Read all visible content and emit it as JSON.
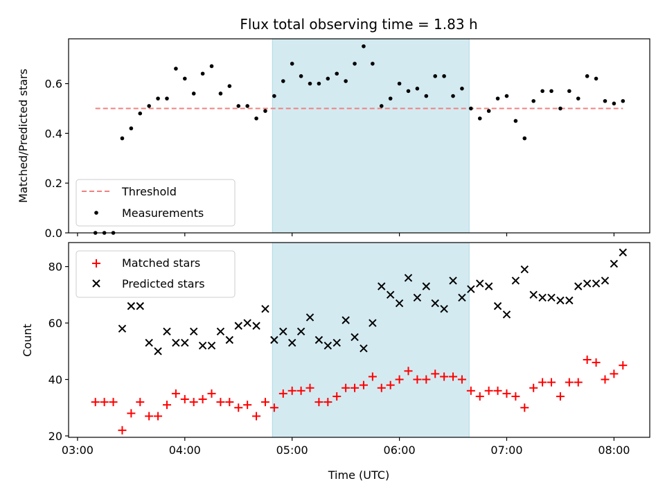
{
  "chart_data": [
    {
      "type": "scatter",
      "title": "Flux total observing time = 1.83 h",
      "xlabel": "",
      "ylabel": "Matched/Predicted stars",
      "xlim": [
        "02:55",
        "08:20"
      ],
      "ylim": [
        0,
        0.78
      ],
      "xticks": [
        "03:00",
        "04:00",
        "05:00",
        "06:00",
        "07:00",
        "08:00"
      ],
      "yticks": [
        "0.0",
        "0.2",
        "0.4",
        "0.6"
      ],
      "highlight_span": {
        "start": "04:49",
        "end": "06:39",
        "color": "#d4eaf1"
      },
      "threshold": {
        "name": "Threshold",
        "value": 0.5,
        "x_start": "03:10",
        "x_end": "08:05",
        "color": "#f08080"
      },
      "legend_location": "lower-left",
      "series": [
        {
          "name": "Measurements",
          "color": "#000000",
          "x": [
            "03:10",
            "03:15",
            "03:20",
            "03:25",
            "03:30",
            "03:35",
            "03:40",
            "03:45",
            "03:50",
            "03:55",
            "04:00",
            "04:05",
            "04:10",
            "04:15",
            "04:20",
            "04:25",
            "04:30",
            "04:35",
            "04:40",
            "04:45",
            "04:50",
            "04:55",
            "05:00",
            "05:05",
            "05:10",
            "05:15",
            "05:20",
            "05:25",
            "05:30",
            "05:35",
            "05:40",
            "05:45",
            "05:50",
            "05:55",
            "06:00",
            "06:05",
            "06:10",
            "06:15",
            "06:20",
            "06:25",
            "06:30",
            "06:35",
            "06:40",
            "06:45",
            "06:50",
            "06:55",
            "07:00",
            "07:05",
            "07:10",
            "07:15",
            "07:20",
            "07:25",
            "07:30",
            "07:35",
            "07:40",
            "07:45",
            "07:50",
            "07:55",
            "08:00",
            "08:05"
          ],
          "y": [
            0.0,
            0.0,
            0.0,
            0.38,
            0.42,
            0.48,
            0.51,
            0.54,
            0.54,
            0.66,
            0.62,
            0.56,
            0.64,
            0.67,
            0.56,
            0.59,
            0.51,
            0.51,
            0.46,
            0.49,
            0.55,
            0.61,
            0.68,
            0.63,
            0.6,
            0.6,
            0.62,
            0.64,
            0.61,
            0.68,
            0.75,
            0.68,
            0.51,
            0.54,
            0.6,
            0.57,
            0.58,
            0.55,
            0.63,
            0.63,
            0.55,
            0.58,
            0.5,
            0.46,
            0.49,
            0.54,
            0.55,
            0.45,
            0.38,
            0.53,
            0.57,
            0.57,
            0.5,
            0.57,
            0.54,
            0.63,
            0.62,
            0.53,
            0.52,
            0.53
          ]
        }
      ]
    },
    {
      "type": "scatter",
      "title": "",
      "xlabel": "Time (UTC)",
      "ylabel": "Count",
      "xlim": [
        "02:55",
        "08:20"
      ],
      "ylim": [
        19.5,
        88.5
      ],
      "xticks": [
        "03:00",
        "04:00",
        "05:00",
        "06:00",
        "07:00",
        "08:00"
      ],
      "yticks": [
        "20",
        "40",
        "60",
        "80"
      ],
      "highlight_span": {
        "start": "04:49",
        "end": "06:39",
        "color": "#d4eaf1"
      },
      "legend_location": "upper-left",
      "series": [
        {
          "name": "Matched stars",
          "marker": "plus",
          "color": "#ff0000",
          "x": [
            "03:10",
            "03:15",
            "03:20",
            "03:25",
            "03:30",
            "03:35",
            "03:40",
            "03:45",
            "03:50",
            "03:55",
            "04:00",
            "04:05",
            "04:10",
            "04:15",
            "04:20",
            "04:25",
            "04:30",
            "04:35",
            "04:40",
            "04:45",
            "04:50",
            "04:55",
            "05:00",
            "05:05",
            "05:10",
            "05:15",
            "05:20",
            "05:25",
            "05:30",
            "05:35",
            "05:40",
            "05:45",
            "05:50",
            "05:55",
            "06:00",
            "06:05",
            "06:10",
            "06:15",
            "06:20",
            "06:25",
            "06:30",
            "06:35",
            "06:40",
            "06:45",
            "06:50",
            "06:55",
            "07:00",
            "07:05",
            "07:10",
            "07:15",
            "07:20",
            "07:25",
            "07:30",
            "07:35",
            "07:40",
            "07:45",
            "07:50",
            "07:55",
            "08:00",
            "08:05"
          ],
          "y": [
            32,
            32,
            32,
            22,
            28,
            32,
            27,
            27,
            31,
            35,
            33,
            32,
            33,
            35,
            32,
            32,
            30,
            31,
            27,
            32,
            30,
            35,
            36,
            36,
            37,
            32,
            32,
            34,
            37,
            37,
            38,
            41,
            37,
            38,
            40,
            43,
            40,
            40,
            42,
            41,
            41,
            40,
            36,
            34,
            36,
            36,
            35,
            34,
            30,
            37,
            39,
            39,
            34,
            39,
            39,
            47,
            46,
            40,
            42,
            45
          ]
        },
        {
          "name": "Predicted stars",
          "marker": "x",
          "color": "#000000",
          "x": [
            "03:25",
            "03:30",
            "03:35",
            "03:40",
            "03:45",
            "03:50",
            "03:55",
            "04:00",
            "04:05",
            "04:10",
            "04:15",
            "04:20",
            "04:25",
            "04:30",
            "04:35",
            "04:40",
            "04:45",
            "04:50",
            "04:55",
            "05:00",
            "05:05",
            "05:10",
            "05:15",
            "05:20",
            "05:25",
            "05:30",
            "05:35",
            "05:40",
            "05:45",
            "05:50",
            "05:55",
            "06:00",
            "06:05",
            "06:10",
            "06:15",
            "06:20",
            "06:25",
            "06:30",
            "06:35",
            "06:40",
            "06:45",
            "06:50",
            "06:55",
            "07:00",
            "07:05",
            "07:10",
            "07:15",
            "07:20",
            "07:25",
            "07:30",
            "07:35",
            "07:40",
            "07:45",
            "07:50",
            "07:55",
            "08:00",
            "08:05"
          ],
          "y": [
            58,
            66,
            66,
            53,
            50,
            57,
            53,
            53,
            57,
            52,
            52,
            57,
            54,
            59,
            60,
            59,
            65,
            54,
            57,
            53,
            57,
            62,
            54,
            52,
            53,
            61,
            55,
            51,
            60,
            73,
            70,
            67,
            76,
            69,
            73,
            67,
            65,
            75,
            69,
            72,
            74,
            73,
            66,
            63,
            75,
            79,
            70,
            69,
            69,
            68,
            68,
            73,
            74,
            74,
            75,
            81,
            85
          ]
        }
      ]
    }
  ]
}
